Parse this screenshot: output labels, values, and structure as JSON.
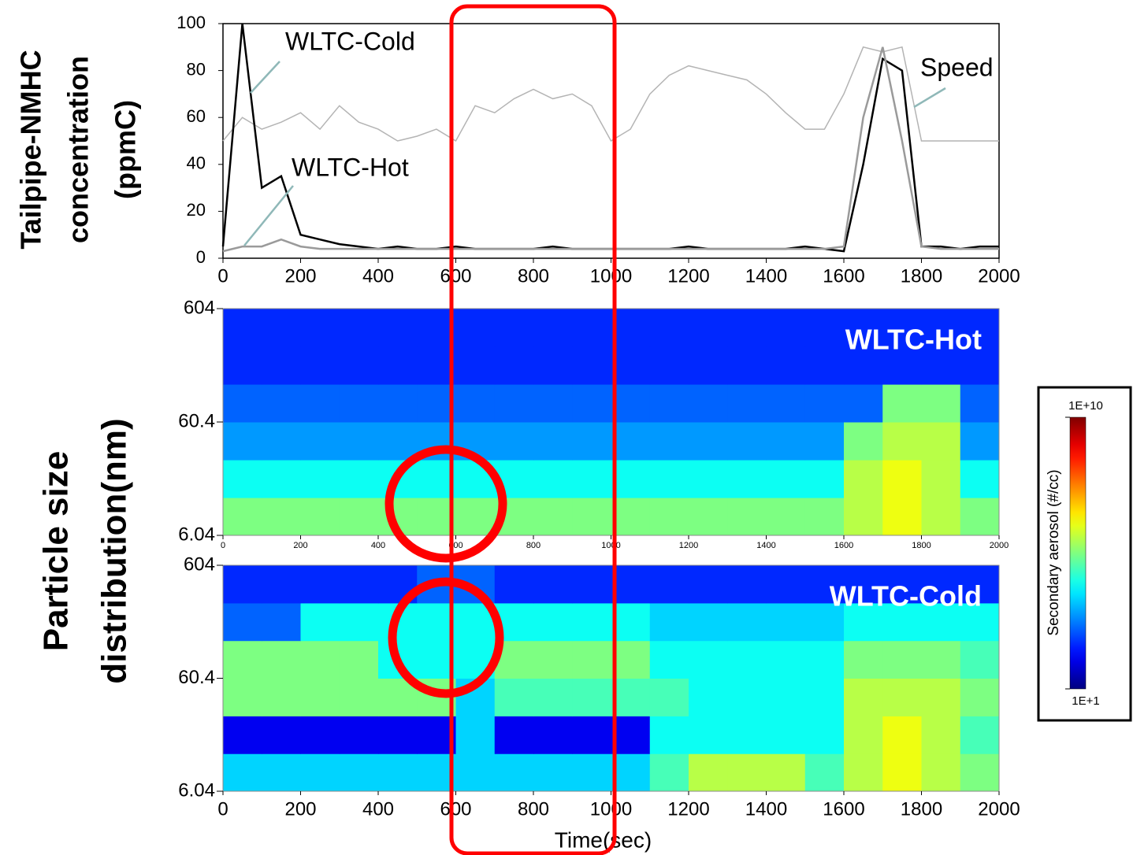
{
  "chart_data": [
    {
      "type": "line",
      "ylabel_lines": [
        "Tailpipe-NMHC",
        "concentration",
        "(ppmC)"
      ],
      "annotations": [
        "WLTC-Cold",
        "WLTC-Hot",
        "Speed"
      ],
      "x": [
        0,
        50,
        100,
        150,
        200,
        250,
        300,
        350,
        400,
        450,
        500,
        550,
        600,
        650,
        700,
        750,
        800,
        850,
        900,
        950,
        1000,
        1050,
        1100,
        1150,
        1200,
        1250,
        1300,
        1350,
        1400,
        1450,
        1500,
        1550,
        1600,
        1650,
        1700,
        1750,
        1800,
        1850,
        1900,
        1950,
        2000
      ],
      "series": [
        {
          "name": "Speed",
          "color": "#b4b4b4",
          "values": [
            50,
            60,
            55,
            58,
            62,
            55,
            65,
            58,
            55,
            50,
            52,
            55,
            50,
            65,
            62,
            68,
            72,
            68,
            70,
            65,
            50,
            55,
            70,
            78,
            82,
            80,
            78,
            76,
            70,
            62,
            55,
            55,
            70,
            90,
            88,
            90,
            50,
            50,
            50,
            50,
            50
          ]
        },
        {
          "name": "WLTC-Cold",
          "color": "#000000",
          "values": [
            5,
            100,
            30,
            35,
            10,
            8,
            6,
            5,
            4,
            5,
            4,
            4,
            5,
            4,
            4,
            4,
            4,
            5,
            4,
            4,
            4,
            4,
            4,
            4,
            5,
            4,
            4,
            4,
            4,
            4,
            5,
            4,
            3,
            40,
            85,
            80,
            5,
            5,
            4,
            5,
            5
          ]
        },
        {
          "name": "WLTC-Hot",
          "color": "#9a9a9a",
          "values": [
            3,
            5,
            5,
            8,
            5,
            4,
            4,
            4,
            4,
            4,
            4,
            4,
            4,
            4,
            4,
            4,
            4,
            4,
            4,
            4,
            4,
            4,
            4,
            4,
            4,
            4,
            4,
            4,
            4,
            4,
            4,
            4,
            5,
            60,
            90,
            50,
            5,
            4,
            4,
            4,
            4
          ]
        }
      ],
      "xlim": [
        0,
        2000
      ],
      "xticks": [
        0,
        200,
        400,
        600,
        800,
        1000,
        1200,
        1400,
        1600,
        1800,
        2000
      ],
      "ylim": [
        0,
        100
      ],
      "yticks": [
        0,
        20,
        40,
        60,
        80,
        100
      ]
    },
    {
      "type": "heatmap",
      "label": "WLTC-Hot",
      "ylabel_lines": [
        "Particle size",
        "distribution(nm)"
      ],
      "colormap": "jet",
      "log_y": true,
      "x_edges": [
        0,
        100,
        200,
        300,
        400,
        500,
        600,
        700,
        800,
        900,
        1000,
        1100,
        1200,
        1300,
        1400,
        1500,
        1600,
        1700,
        1800,
        1900,
        2000
      ],
      "y_edges": [
        6.04,
        13,
        28,
        60.4,
        130,
        280,
        604
      ],
      "z": [
        [
          300000.0,
          300000.0,
          300000.0,
          300000.0,
          300000.0,
          300000.0,
          300000.0,
          300000.0,
          300000.0,
          300000.0,
          300000.0,
          300000.0,
          300000.0,
          300000.0,
          300000.0,
          300000.0,
          1000000.0,
          3000000.0,
          1000000.0,
          300000.0
        ],
        [
          30000.0,
          30000.0,
          30000.0,
          30000.0,
          30000.0,
          30000.0,
          30000.0,
          30000.0,
          30000.0,
          30000.0,
          30000.0,
          30000.0,
          30000.0,
          30000.0,
          30000.0,
          30000.0,
          1000000.0,
          3000000.0,
          1000000.0,
          30000.0
        ],
        [
          3000.0,
          3000.0,
          3000.0,
          3000.0,
          3000.0,
          3000.0,
          3000.0,
          3000.0,
          3000.0,
          3000.0,
          3000.0,
          3000.0,
          3000.0,
          3000.0,
          3000.0,
          3000.0,
          300000.0,
          1000000.0,
          1000000.0,
          3000.0
        ],
        [
          1000.0,
          1000.0,
          1000.0,
          1000.0,
          1000.0,
          1000.0,
          1000.0,
          1000.0,
          1000.0,
          1000.0,
          1000.0,
          1000.0,
          1000.0,
          1000.0,
          1000.0,
          1000.0,
          1000.0,
          300000.0,
          300000.0,
          1000.0
        ],
        [
          300.0,
          300.0,
          300.0,
          300.0,
          300.0,
          300.0,
          300.0,
          300.0,
          300.0,
          300.0,
          300.0,
          300.0,
          300.0,
          300.0,
          300.0,
          300.0,
          300.0,
          300.0,
          300.0,
          300.0
        ],
        [
          300.0,
          300.0,
          300.0,
          300.0,
          300.0,
          300.0,
          300.0,
          300.0,
          300.0,
          300.0,
          300.0,
          300.0,
          300.0,
          300.0,
          300.0,
          300.0,
          300.0,
          300.0,
          300.0,
          300.0
        ]
      ],
      "xlim": [
        0,
        2000
      ],
      "xticks": [
        0,
        200,
        400,
        600,
        800,
        1000,
        1200,
        1400,
        1600,
        1800,
        2000
      ],
      "ylim": [
        6.04,
        604
      ],
      "yticks": [
        6.04,
        60.4,
        604
      ]
    },
    {
      "type": "heatmap",
      "label": "WLTC-Cold",
      "xlabel": "Time(sec)",
      "colormap": "jet",
      "log_y": true,
      "x_edges": [
        0,
        100,
        200,
        300,
        400,
        500,
        600,
        700,
        800,
        900,
        1000,
        1100,
        1200,
        1300,
        1400,
        1500,
        1600,
        1700,
        1800,
        1900,
        2000
      ],
      "y_edges": [
        6.04,
        13,
        28,
        60.4,
        130,
        280,
        604
      ],
      "z": [
        [
          10000.0,
          10000.0,
          10000.0,
          10000.0,
          10000.0,
          10000.0,
          10000.0,
          10000.0,
          10000.0,
          10000.0,
          10000.0,
          100000.0,
          1000000.0,
          1000000.0,
          1000000.0,
          100000.0,
          1000000.0,
          3000000.0,
          1000000.0,
          300000.0
        ],
        [
          100.0,
          100.0,
          100.0,
          100.0,
          100.0,
          100.0,
          10000.0,
          100.0,
          100.0,
          100.0,
          100.0,
          30000.0,
          30000.0,
          30000.0,
          30000.0,
          30000.0,
          1000000.0,
          3000000.0,
          1000000.0,
          100000.0
        ],
        [
          300000.0,
          300000.0,
          300000.0,
          300000.0,
          300000.0,
          300000.0,
          10000.0,
          100000.0,
          100000.0,
          100000.0,
          100000.0,
          100000.0,
          30000.0,
          30000.0,
          30000.0,
          30000.0,
          1000000.0,
          1000000.0,
          1000000.0,
          300000.0
        ],
        [
          300000.0,
          300000.0,
          300000.0,
          300000.0,
          30000.0,
          30000.0,
          30000.0,
          300000.0,
          300000.0,
          300000.0,
          300000.0,
          30000.0,
          30000.0,
          30000.0,
          30000.0,
          30000.0,
          300000.0,
          300000.0,
          300000.0,
          100000.0
        ],
        [
          1000.0,
          1000.0,
          30000.0,
          30000.0,
          30000.0,
          30000.0,
          30000.0,
          30000.0,
          30000.0,
          30000.0,
          30000.0,
          10000.0,
          10000.0,
          10000.0,
          10000.0,
          10000.0,
          30000.0,
          30000.0,
          30000.0,
          30000.0
        ],
        [
          300.0,
          300.0,
          300.0,
          300.0,
          300.0,
          1000.0,
          1000.0,
          300.0,
          300.0,
          300.0,
          300.0,
          300.0,
          300.0,
          300.0,
          300.0,
          300.0,
          300.0,
          300.0,
          300.0,
          300.0
        ]
      ],
      "xlim": [
        0,
        2000
      ],
      "xticks": [
        0,
        200,
        400,
        600,
        800,
        1000,
        1200,
        1400,
        1600,
        1800,
        2000
      ],
      "ylim": [
        6.04,
        604
      ],
      "yticks": [
        6.04,
        60.4,
        604
      ],
      "colorbar": {
        "label": "Secondary aerosol (#/cc)",
        "lim": [
          10,
          10000000000.0
        ],
        "ticks": [
          {
            "value": 10000000000.0,
            "label": "1E+10"
          },
          {
            "value": 10,
            "label": "1E+1"
          }
        ]
      }
    }
  ]
}
